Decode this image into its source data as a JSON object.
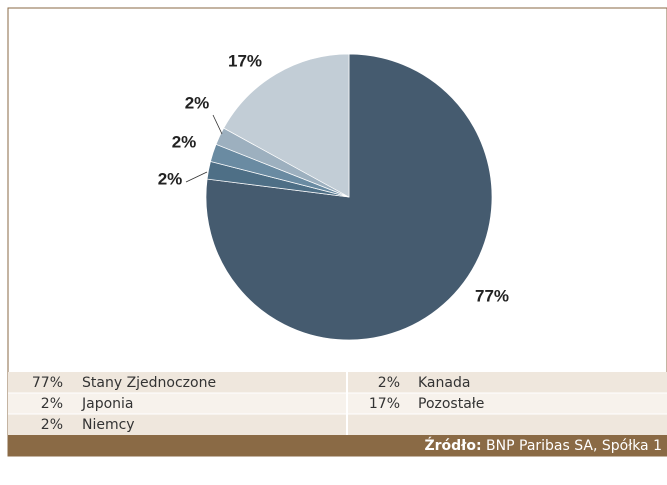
{
  "chart_data": {
    "type": "pie",
    "categories": [
      "Stany Zjednoczone",
      "Niemcy",
      "Japonia",
      "Kanada",
      "Pozostałe"
    ],
    "values": [
      77,
      2,
      2,
      2,
      17
    ],
    "value_labels": [
      "77%",
      "2%",
      "2%",
      "2%",
      "17%"
    ],
    "colors": [
      "#455b6f",
      "#4e6f86",
      "#6a8ba2",
      "#9db0bf",
      "#c2cdd6"
    ],
    "source_label": "Źródło:",
    "source": "BNP Paribas SA, Spółka 1"
  }
}
